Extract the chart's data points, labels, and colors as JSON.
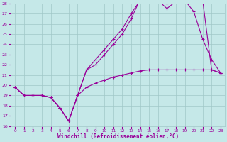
{
  "xlabel": "Windchill (Refroidissement éolien,°C)",
  "bg_color": "#c5e8e8",
  "grid_color": "#a0c8c8",
  "line_color": "#990099",
  "xlim": [
    0,
    23
  ],
  "ylim": [
    16,
    28
  ],
  "yticks": [
    16,
    17,
    18,
    19,
    20,
    21,
    22,
    23,
    24,
    25,
    26,
    27,
    28
  ],
  "xticks": [
    0,
    1,
    2,
    3,
    4,
    5,
    6,
    7,
    8,
    9,
    10,
    11,
    12,
    13,
    14,
    15,
    16,
    17,
    18,
    19,
    20,
    21,
    22,
    23
  ],
  "lines": [
    [
      19.8,
      19.0,
      19.0,
      19.0,
      18.8,
      17.8,
      16.5,
      19.0,
      19.8,
      20.2,
      20.5,
      20.8,
      21.0,
      21.2,
      21.4,
      21.5,
      21.5,
      21.5,
      21.5,
      21.5,
      21.5,
      21.5,
      21.5,
      21.2
    ],
    [
      19.8,
      19.0,
      19.0,
      19.0,
      18.8,
      17.8,
      16.5,
      19.0,
      21.5,
      22.5,
      23.5,
      24.5,
      25.5,
      27.0,
      28.3,
      28.5,
      28.3,
      27.5,
      28.2,
      28.3,
      27.2,
      24.5,
      22.5,
      21.2
    ],
    [
      19.8,
      19.0,
      19.0,
      19.0,
      18.8,
      17.8,
      16.5,
      19.0,
      21.5,
      22.0,
      23.0,
      24.0,
      25.0,
      26.5,
      28.4,
      28.6,
      28.4,
      28.0,
      28.4,
      28.4,
      28.4,
      28.3,
      21.5,
      21.2
    ]
  ]
}
